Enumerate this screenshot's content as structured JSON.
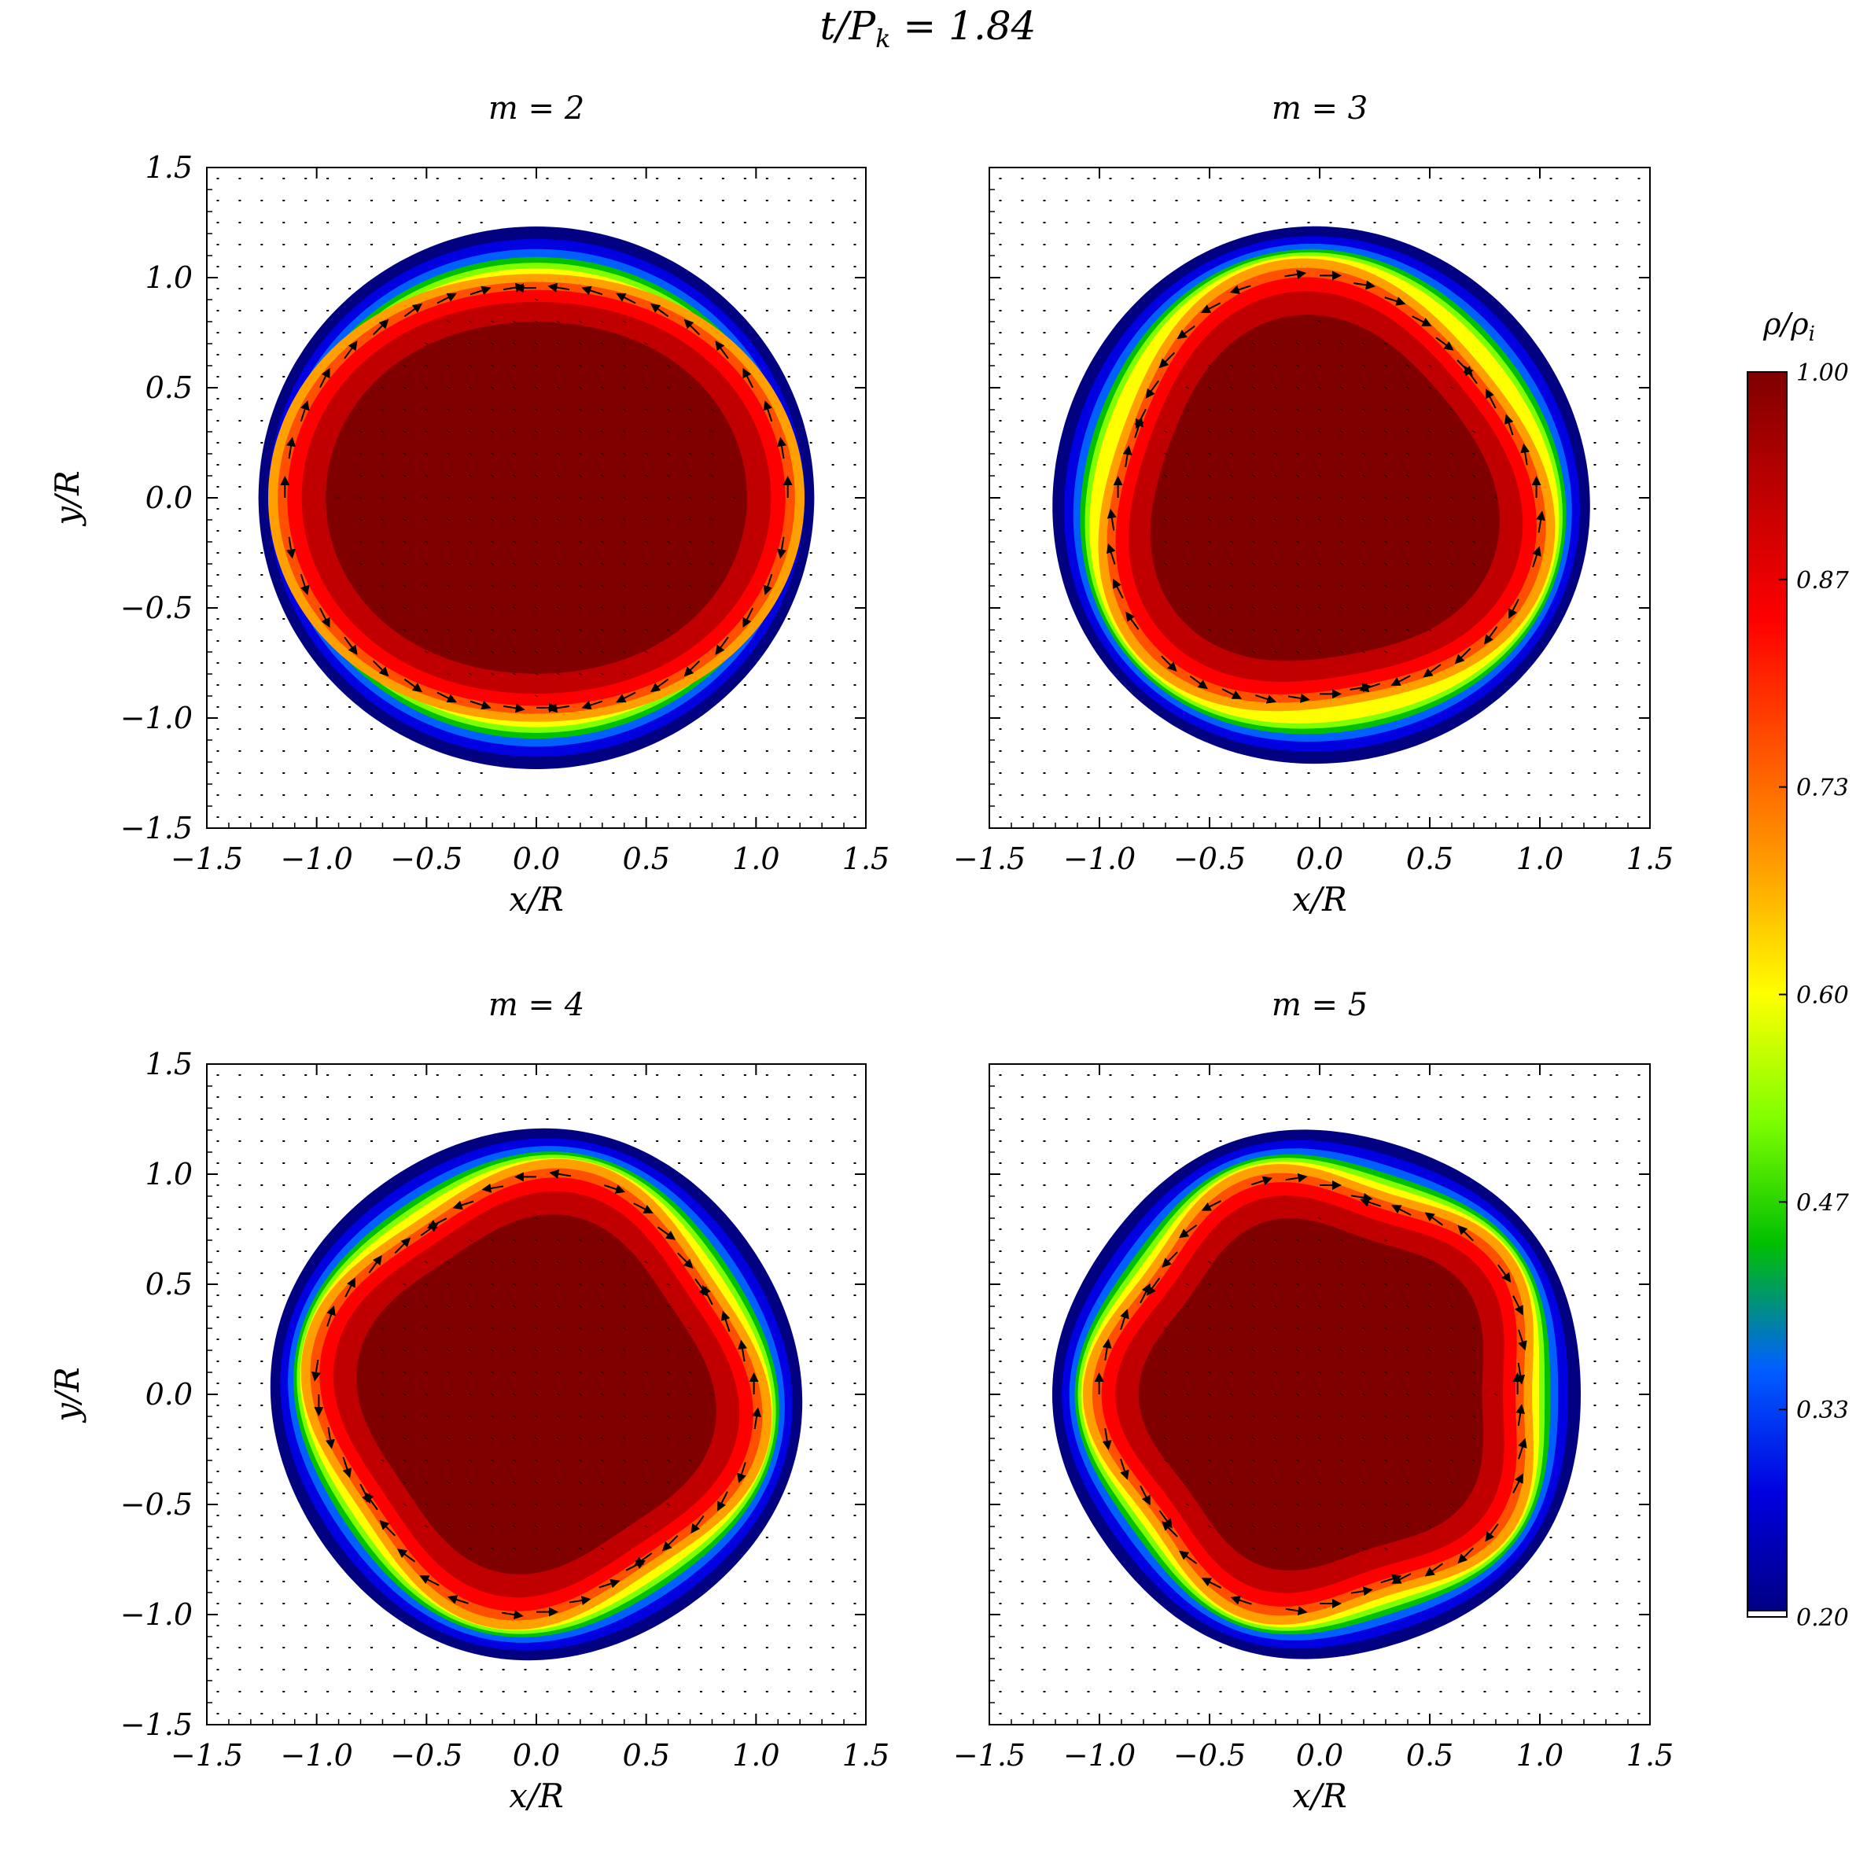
{
  "figure": {
    "title": {
      "base": "t/P",
      "sub": "k",
      "rest": " = 1.84"
    },
    "xlabel": "x/R",
    "ylabel": "y/R",
    "colorbar": {
      "label": {
        "rho": "ρ/ρ",
        "sub": "i"
      },
      "ticks": [
        "1.00",
        "0.87",
        "0.73",
        "0.60",
        "0.47",
        "0.33",
        "0.20"
      ]
    },
    "colors": {
      "scale": [
        "#000080",
        "#0000e0",
        "#0060ff",
        "#00c000",
        "#80ff00",
        "#ffff00",
        "#ffa000",
        "#ff5000",
        "#ff0000",
        "#c00000",
        "#800000"
      ]
    }
  },
  "chart_data": [
    {
      "type": "heatmap",
      "title": "m = 2",
      "m": 2,
      "xlabel": "x/R",
      "ylabel": "y/R",
      "xlim": [
        -1.5,
        1.5
      ],
      "ylim": [
        -1.5,
        1.5
      ],
      "xticks": [
        "−1.5",
        "−1.0",
        "−0.5",
        "0.0",
        "0.5",
        "1.0",
        "1.5"
      ],
      "yticks": [
        "−1.5",
        "−1.0",
        "−0.5",
        "0.0",
        "0.5",
        "1.0",
        "1.5"
      ],
      "colorbar_range": [
        0.2,
        1.0
      ],
      "outer_radius": 1.25,
      "core_radius": 1.1,
      "perturbation_amplitude": 0.15
    },
    {
      "type": "heatmap",
      "title": "m = 3",
      "m": 3,
      "xlabel": "x/R",
      "ylabel": "",
      "xlim": [
        -1.5,
        1.5
      ],
      "ylim": [
        -1.5,
        1.5
      ],
      "xticks": [
        "−1.5",
        "−1.0",
        "−0.5",
        "0.0",
        "0.5",
        "1.0",
        "1.5"
      ],
      "yticks": [],
      "colorbar_range": [
        0.2,
        1.0
      ],
      "outer_radius": 1.22,
      "core_radius": 1.0,
      "perturbation_amplitude": 0.12
    },
    {
      "type": "heatmap",
      "title": "m = 4",
      "m": 4,
      "xlabel": "x/R",
      "ylabel": "y/R",
      "xlim": [
        -1.5,
        1.5
      ],
      "ylim": [
        -1.5,
        1.5
      ],
      "xticks": [
        "−1.5",
        "−1.0",
        "−0.5",
        "0.0",
        "0.5",
        "1.0",
        "1.5"
      ],
      "yticks": [
        "−1.5",
        "−1.0",
        "−0.5",
        "0.0",
        "0.5",
        "1.0",
        "1.5"
      ],
      "colorbar_range": [
        0.2,
        1.0
      ],
      "outer_radius": 1.2,
      "core_radius": 1.0,
      "perturbation_amplitude": 0.1
    },
    {
      "type": "heatmap",
      "title": "m = 5",
      "m": 5,
      "xlabel": "x/R",
      "ylabel": "",
      "xlim": [
        -1.5,
        1.5
      ],
      "ylim": [
        -1.5,
        1.5
      ],
      "xticks": [
        "−1.5",
        "−1.0",
        "−0.5",
        "0.0",
        "0.5",
        "1.0",
        "1.5"
      ],
      "yticks": [],
      "colorbar_range": [
        0.2,
        1.0
      ],
      "outer_radius": 1.2,
      "core_radius": 1.0,
      "perturbation_amplitude": 0.09
    }
  ]
}
